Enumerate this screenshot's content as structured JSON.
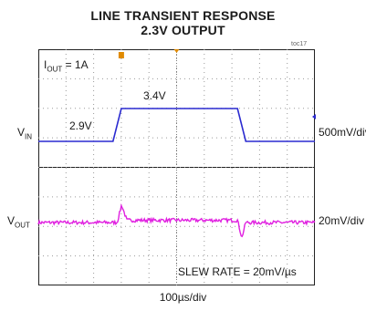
{
  "chart_data": {
    "type": "oscilloscope",
    "title": "LINE TRANSIENT RESPONSE",
    "subtitle": "2.3V OUTPUT",
    "ref_code": "toc17",
    "condition": {
      "label": "I",
      "sub": "OUT",
      "value": " = 1A"
    },
    "timebase": "100µs/div",
    "grid": true,
    "channels": [
      {
        "name": "VIN",
        "label": "V",
        "sub": "IN",
        "scale": "500mV/div",
        "color": "#2a2ad0",
        "levels": [
          "2.9V",
          "3.4V"
        ],
        "x": [
          0,
          0.27,
          0.3,
          0.72,
          0.75,
          1
        ],
        "y": [
          2.9,
          2.9,
          3.4,
          3.4,
          2.9,
          2.9
        ]
      },
      {
        "name": "VOUT",
        "label": "V",
        "sub": "OUT",
        "scale": "20mV/div",
        "color": "#e020e0",
        "x": [
          0,
          0.285,
          0.3,
          0.32,
          0.72,
          0.735,
          0.75,
          0.77,
          1
        ],
        "y": [
          0,
          0,
          18,
          0,
          0,
          -18,
          0,
          0,
          0
        ]
      }
    ],
    "annotation": "SLEW RATE = 20mV/µs"
  },
  "colors": {
    "trigger_marker": "#e08a00",
    "vin": "#2a2ad0",
    "vout": "#e020e0"
  }
}
